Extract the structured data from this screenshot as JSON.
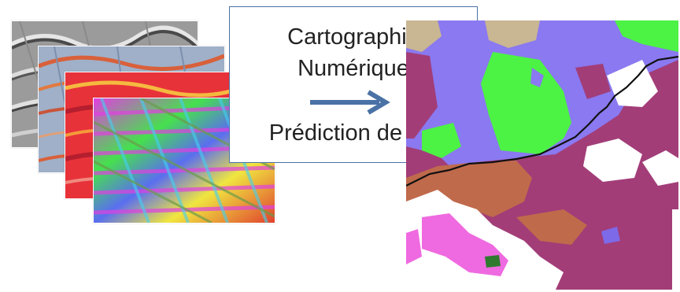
{
  "text_box": {
    "line1": "Cartographie",
    "line2": "Numérique",
    "line3": "Prédiction de sol"
  },
  "colors": {
    "box_border": "#4a72a6",
    "arrow": "#4a72a6",
    "soil_magenta": "#a23d78",
    "soil_green": "#4cf244",
    "soil_violet": "#8a79f0",
    "soil_pink": "#ef6ae0",
    "soil_brown": "#c06a4c",
    "soil_tan": "#c9b693"
  },
  "layers": [
    "hillshade-layer",
    "curvature-layer",
    "slope-layer",
    "aspect-layer"
  ]
}
